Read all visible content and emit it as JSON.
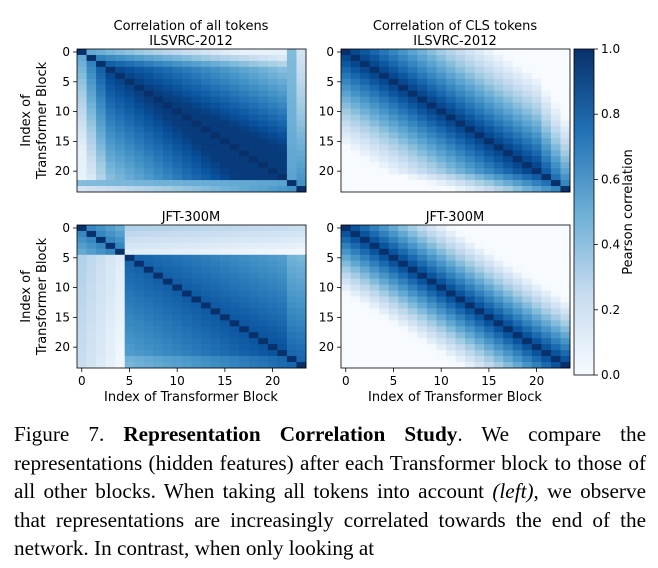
{
  "chart_data": [
    {
      "type": "heatmap",
      "title": "Correlation of all tokens",
      "subtitle": "ILSVRC-2012",
      "ylabel": "Index of\nTransformer Block",
      "xlabel": "",
      "size": 24,
      "pattern": "all_ilsvrc",
      "xticks": [],
      "yticks": [
        0,
        5,
        10,
        15,
        20
      ],
      "colorscale": [
        "#f7fbff",
        "#08306b"
      ],
      "vrange": [
        0.0,
        1.0
      ]
    },
    {
      "type": "heatmap",
      "title": "Correlation of CLS tokens",
      "subtitle": "ILSVRC-2012",
      "ylabel": "",
      "xlabel": "",
      "size": 24,
      "pattern": "cls_ilsvrc",
      "xticks": [],
      "yticks": [
        0,
        5,
        10,
        15,
        20
      ],
      "colorscale": [
        "#f7fbff",
        "#08306b"
      ],
      "vrange": [
        0.0,
        1.0
      ]
    },
    {
      "type": "heatmap",
      "title": "JFT-300M",
      "subtitle": "",
      "ylabel": "Index of\nTransformer Block",
      "xlabel": "Index of Transformer Block",
      "size": 24,
      "pattern": "all_jft",
      "xticks": [
        0,
        5,
        10,
        15,
        20
      ],
      "yticks": [
        0,
        5,
        10,
        15,
        20
      ],
      "colorscale": [
        "#f7fbff",
        "#08306b"
      ],
      "vrange": [
        0.0,
        1.0
      ]
    },
    {
      "type": "heatmap",
      "title": "JFT-300M",
      "subtitle": "",
      "ylabel": "",
      "xlabel": "Index of Transformer Block",
      "size": 24,
      "pattern": "cls_jft",
      "xticks": [
        0,
        5,
        10,
        15,
        20
      ],
      "yticks": [
        0,
        5,
        10,
        15,
        20
      ],
      "colorscale": [
        "#f7fbff",
        "#08306b"
      ],
      "vrange": [
        0.0,
        1.0
      ]
    }
  ],
  "colorbar": {
    "label": "Pearson correlation",
    "ticks": [
      "0.0",
      "0.2",
      "0.4",
      "0.6",
      "0.8",
      "1.0"
    ]
  },
  "caption": {
    "label": "Figure 7.",
    "title": "Representation Correlation Study",
    "text_1": ". We compare the representations (hidden features) after each Transformer block to those of all other blocks. When taking all tokens into account ",
    "emph": "(left)",
    "text_2": ", we observe that representations are increasingly correlated towards the end of the network. In contrast, when only looking at"
  }
}
